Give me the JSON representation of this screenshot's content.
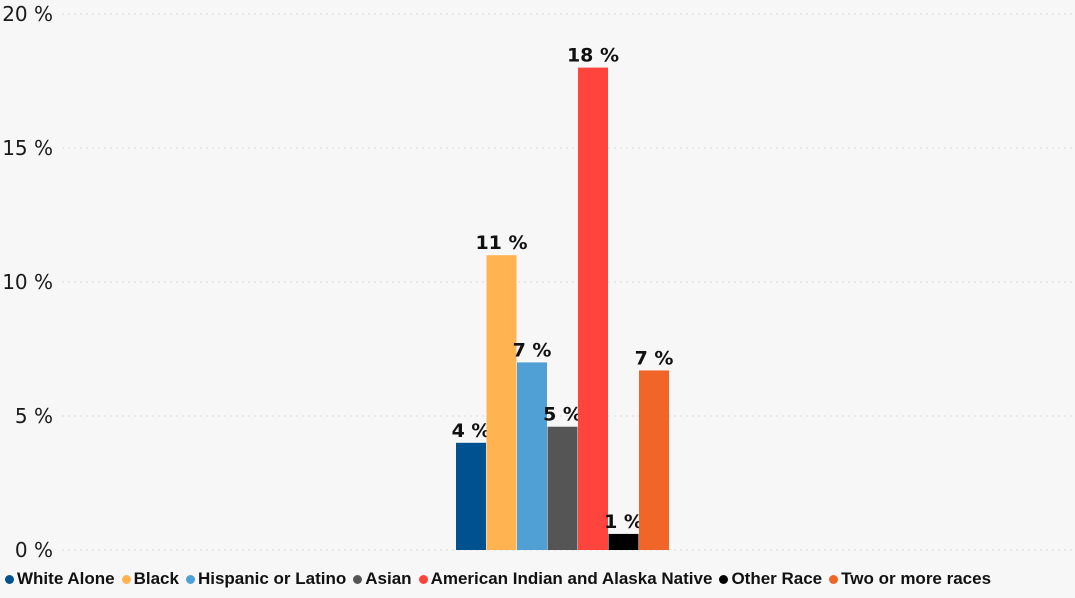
{
  "chart_data": {
    "type": "bar",
    "title": "",
    "xlabel": "",
    "ylabel": "",
    "ylim": [
      0,
      20
    ],
    "y_ticks": [
      "0 %",
      "5 %",
      "10 %",
      "15 %",
      "20 %"
    ],
    "y_tick_values": [
      0,
      5,
      10,
      15,
      20
    ],
    "grid": true,
    "legend_position": "bottom",
    "series": [
      {
        "name": "White Alone",
        "value": 4,
        "label": "4 %",
        "color": "#005190"
      },
      {
        "name": "Black",
        "value": 11,
        "label": "11 %",
        "color": "#ffb451"
      },
      {
        "name": "Hispanic or Latino",
        "value": 7,
        "label": "7 %",
        "color": "#50a0d6"
      },
      {
        "name": "Asian",
        "value": 4.6,
        "label": "5 %",
        "color": "#555555"
      },
      {
        "name": "American Indian and Alaska Native",
        "value": 18,
        "label": "18 %",
        "color": "#ff433d"
      },
      {
        "name": "Other Race",
        "value": 0.6,
        "label": "1 %",
        "color": "#000000"
      },
      {
        "name": "Two or more races",
        "value": 6.7,
        "label": "7 %",
        "color": "#f26529"
      }
    ]
  }
}
